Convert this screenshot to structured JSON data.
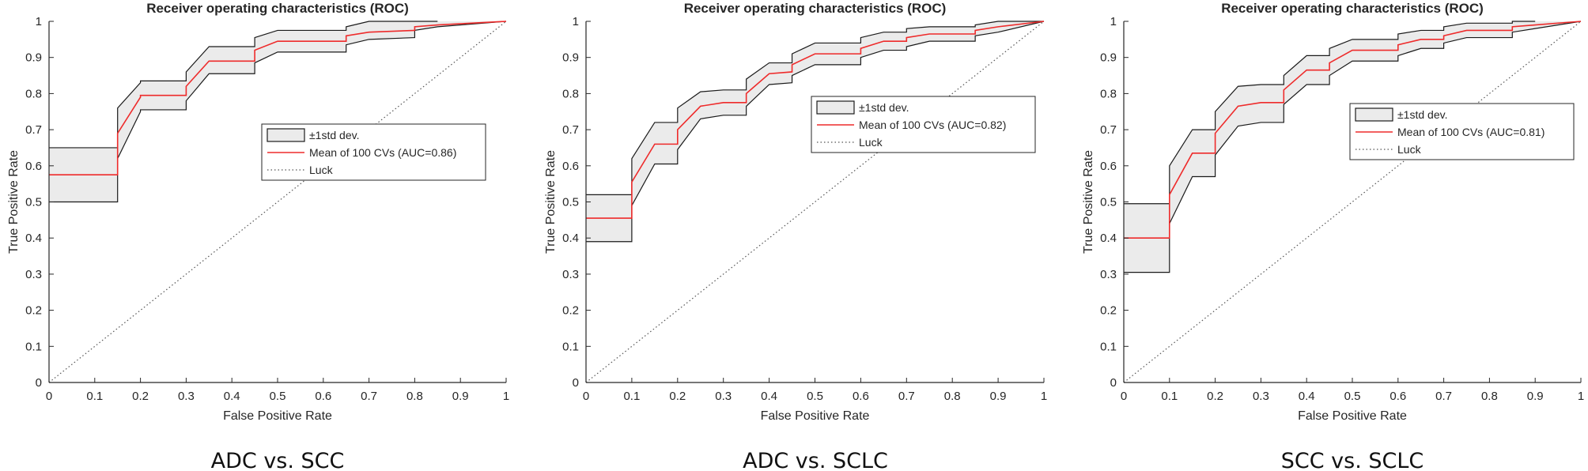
{
  "colors": {
    "axis": "#262626",
    "band_fill": "#ebebeb",
    "band_edge": "#1a1a1a",
    "mean_line": "#ee2b2b",
    "luck_line": "#555555",
    "legend_bg": "#ffffff"
  },
  "chart_data": [
    {
      "type": "line",
      "title": "Receiver operating characteristics (ROC)",
      "caption": "ADC vs. SCC",
      "xlabel": "False Positive Rate",
      "ylabel": "True Positive Rate",
      "xlim": [
        0,
        1
      ],
      "ylim": [
        0,
        1
      ],
      "xticks": [
        "0",
        "0.1",
        "0.2",
        "0.3",
        "0.4",
        "0.5",
        "0.6",
        "0.7",
        "0.8",
        "0.9",
        "1"
      ],
      "yticks": [
        "0",
        "0.1",
        "0.2",
        "0.3",
        "0.4",
        "0.5",
        "0.6",
        "0.7",
        "0.8",
        "0.9",
        "1"
      ],
      "legend": {
        "std_label": "±1std dev.",
        "mean_label": "Mean of 100 CVs (AUC=0.86)",
        "luck_label": "Luck"
      },
      "series": [
        {
          "name": "Mean of 100 CVs (AUC=0.86)",
          "x": [
            0,
            0.15,
            0.15,
            0.2,
            0.2,
            0.3,
            0.3,
            0.35,
            0.35,
            0.45,
            0.45,
            0.5,
            0.5,
            0.65,
            0.65,
            0.7,
            0.7,
            0.8,
            0.8,
            0.85,
            0.85,
            1
          ],
          "y": [
            0.575,
            0.575,
            0.69,
            0.79,
            0.795,
            0.795,
            0.82,
            0.89,
            0.89,
            0.89,
            0.92,
            0.945,
            0.945,
            0.945,
            0.96,
            0.97,
            0.97,
            0.975,
            0.985,
            0.99,
            0.99,
            1
          ]
        },
        {
          "name": "+1 std",
          "x": [
            0,
            0.15,
            0.15,
            0.2,
            0.2,
            0.3,
            0.3,
            0.35,
            0.35,
            0.45,
            0.45,
            0.5,
            0.5,
            0.65,
            0.65,
            0.7,
            0.7,
            0.85
          ],
          "y": [
            0.65,
            0.65,
            0.76,
            0.83,
            0.835,
            0.835,
            0.86,
            0.93,
            0.93,
            0.93,
            0.955,
            0.975,
            0.975,
            0.975,
            0.985,
            1.0,
            1.0,
            1.0
          ]
        },
        {
          "name": "-1 std",
          "x": [
            0,
            0.15,
            0.15,
            0.2,
            0.2,
            0.3,
            0.3,
            0.35,
            0.35,
            0.45,
            0.45,
            0.5,
            0.5,
            0.65,
            0.65,
            0.7,
            0.7,
            0.8,
            0.8,
            0.85,
            0.85,
            1
          ],
          "y": [
            0.5,
            0.5,
            0.62,
            0.75,
            0.755,
            0.755,
            0.78,
            0.855,
            0.855,
            0.855,
            0.885,
            0.915,
            0.915,
            0.915,
            0.935,
            0.95,
            0.95,
            0.955,
            0.975,
            0.985,
            0.985,
            1
          ]
        }
      ]
    },
    {
      "type": "line",
      "title": "Receiver operating characteristics (ROC)",
      "caption": "ADC vs. SCLC",
      "xlabel": "False Positive Rate",
      "ylabel": "True Positive Rate",
      "xlim": [
        0,
        1
      ],
      "ylim": [
        0,
        1
      ],
      "xticks": [
        "0",
        "0.1",
        "0.2",
        "0.3",
        "0.4",
        "0.5",
        "0.6",
        "0.7",
        "0.8",
        "0.9",
        "1"
      ],
      "yticks": [
        "0",
        "0.1",
        "0.2",
        "0.3",
        "0.4",
        "0.5",
        "0.6",
        "0.7",
        "0.8",
        "0.9",
        "1"
      ],
      "legend": {
        "std_label": "±1std dev.",
        "mean_label": "Mean of 100 CVs (AUC=0.82)",
        "luck_label": "Luck"
      },
      "series": [
        {
          "name": "Mean of 100 CVs (AUC=0.82)",
          "x": [
            0,
            0.1,
            0.1,
            0.15,
            0.15,
            0.2,
            0.2,
            0.25,
            0.25,
            0.3,
            0.3,
            0.35,
            0.35,
            0.4,
            0.4,
            0.45,
            0.45,
            0.5,
            0.5,
            0.6,
            0.6,
            0.65,
            0.65,
            0.7,
            0.7,
            0.75,
            0.75,
            0.85,
            0.85,
            0.9,
            0.9,
            1
          ],
          "y": [
            0.455,
            0.455,
            0.555,
            0.66,
            0.66,
            0.66,
            0.7,
            0.765,
            0.765,
            0.775,
            0.775,
            0.775,
            0.8,
            0.855,
            0.855,
            0.86,
            0.88,
            0.91,
            0.91,
            0.91,
            0.925,
            0.945,
            0.945,
            0.945,
            0.955,
            0.965,
            0.965,
            0.965,
            0.975,
            0.985,
            0.985,
            1
          ]
        },
        {
          "name": "+1 std",
          "x": [
            0,
            0.1,
            0.1,
            0.15,
            0.15,
            0.2,
            0.2,
            0.25,
            0.25,
            0.3,
            0.3,
            0.35,
            0.35,
            0.4,
            0.4,
            0.45,
            0.45,
            0.5,
            0.5,
            0.6,
            0.6,
            0.65,
            0.65,
            0.7,
            0.7,
            0.75,
            0.75,
            0.85,
            0.85,
            0.9,
            0.9,
            1
          ],
          "y": [
            0.52,
            0.52,
            0.62,
            0.72,
            0.72,
            0.72,
            0.76,
            0.805,
            0.805,
            0.81,
            0.81,
            0.81,
            0.84,
            0.885,
            0.885,
            0.885,
            0.91,
            0.94,
            0.94,
            0.94,
            0.955,
            0.97,
            0.97,
            0.97,
            0.98,
            0.985,
            0.985,
            0.985,
            0.99,
            1.0,
            1.0,
            1.0
          ]
        },
        {
          "name": "-1 std",
          "x": [
            0,
            0.1,
            0.1,
            0.15,
            0.15,
            0.2,
            0.2,
            0.25,
            0.25,
            0.3,
            0.3,
            0.35,
            0.35,
            0.4,
            0.4,
            0.45,
            0.45,
            0.5,
            0.5,
            0.6,
            0.6,
            0.65,
            0.65,
            0.7,
            0.7,
            0.75,
            0.75,
            0.85,
            0.85,
            0.9,
            0.9,
            1
          ],
          "y": [
            0.39,
            0.39,
            0.49,
            0.605,
            0.605,
            0.605,
            0.645,
            0.73,
            0.73,
            0.74,
            0.74,
            0.74,
            0.765,
            0.825,
            0.825,
            0.83,
            0.85,
            0.88,
            0.88,
            0.88,
            0.9,
            0.92,
            0.92,
            0.92,
            0.93,
            0.945,
            0.945,
            0.945,
            0.96,
            0.97,
            0.97,
            1
          ]
        }
      ]
    },
    {
      "type": "line",
      "title": "Receiver operating characteristics (ROC)",
      "caption": "SCC vs. SCLC",
      "xlabel": "False Positive Rate",
      "ylabel": "True Positive Rate",
      "xlim": [
        0,
        1
      ],
      "ylim": [
        0,
        1
      ],
      "xticks": [
        "0",
        "0.1",
        "0.2",
        "0.3",
        "0.4",
        "0.5",
        "0.6",
        "0.7",
        "0.8",
        "0.9",
        "1"
      ],
      "yticks": [
        "0",
        "0.1",
        "0.2",
        "0.3",
        "0.4",
        "0.5",
        "0.6",
        "0.7",
        "0.8",
        "0.9",
        "1"
      ],
      "legend": {
        "std_label": "±1std dev.",
        "mean_label": "Mean of 100 CVs (AUC=0.81)",
        "luck_label": "Luck"
      },
      "series": [
        {
          "name": "Mean of 100 CVs (AUC=0.81)",
          "x": [
            0,
            0.1,
            0.1,
            0.15,
            0.15,
            0.2,
            0.2,
            0.25,
            0.25,
            0.3,
            0.3,
            0.35,
            0.35,
            0.4,
            0.4,
            0.45,
            0.45,
            0.5,
            0.5,
            0.6,
            0.6,
            0.65,
            0.65,
            0.7,
            0.7,
            0.75,
            0.75,
            0.85,
            0.85,
            0.9,
            0.9,
            1
          ],
          "y": [
            0.4,
            0.4,
            0.52,
            0.635,
            0.635,
            0.635,
            0.69,
            0.765,
            0.765,
            0.775,
            0.775,
            0.775,
            0.81,
            0.865,
            0.865,
            0.865,
            0.885,
            0.92,
            0.92,
            0.92,
            0.935,
            0.95,
            0.95,
            0.95,
            0.96,
            0.975,
            0.975,
            0.975,
            0.985,
            0.99,
            0.99,
            1
          ]
        },
        {
          "name": "+1 std",
          "x": [
            0,
            0.1,
            0.1,
            0.15,
            0.15,
            0.2,
            0.2,
            0.25,
            0.25,
            0.3,
            0.3,
            0.35,
            0.35,
            0.4,
            0.4,
            0.45,
            0.45,
            0.5,
            0.5,
            0.6,
            0.6,
            0.65,
            0.65,
            0.7,
            0.7,
            0.75,
            0.75,
            0.85,
            0.85,
            0.9
          ],
          "y": [
            0.495,
            0.495,
            0.6,
            0.7,
            0.7,
            0.7,
            0.75,
            0.82,
            0.82,
            0.825,
            0.825,
            0.825,
            0.85,
            0.905,
            0.905,
            0.905,
            0.925,
            0.95,
            0.95,
            0.95,
            0.965,
            0.975,
            0.975,
            0.975,
            0.985,
            0.995,
            0.995,
            0.995,
            1.0,
            1.0
          ]
        },
        {
          "name": "-1 std",
          "x": [
            0,
            0.1,
            0.1,
            0.15,
            0.15,
            0.2,
            0.2,
            0.25,
            0.25,
            0.3,
            0.3,
            0.35,
            0.35,
            0.4,
            0.4,
            0.45,
            0.45,
            0.5,
            0.5,
            0.6,
            0.6,
            0.65,
            0.65,
            0.7,
            0.7,
            0.75,
            0.75,
            0.85,
            0.85,
            0.9,
            0.9,
            1
          ],
          "y": [
            0.305,
            0.305,
            0.44,
            0.57,
            0.57,
            0.57,
            0.63,
            0.71,
            0.71,
            0.72,
            0.72,
            0.72,
            0.77,
            0.825,
            0.825,
            0.825,
            0.85,
            0.89,
            0.89,
            0.89,
            0.905,
            0.925,
            0.925,
            0.925,
            0.94,
            0.955,
            0.955,
            0.955,
            0.97,
            0.98,
            0.98,
            1
          ]
        }
      ]
    }
  ]
}
